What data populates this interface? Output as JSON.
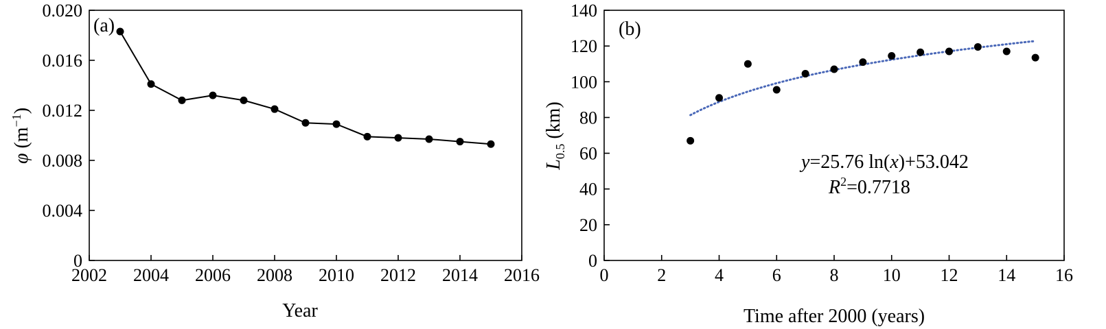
{
  "chart_data": [
    {
      "type": "line",
      "panel_label": "(a)",
      "xlabel": "Year",
      "ylabel_symbol": "φ",
      "ylabel_unit": "(m",
      "ylabel_exp": "−1",
      "ylabel_close": ")",
      "xlim": [
        2002,
        2016
      ],
      "ylim": [
        0,
        0.02
      ],
      "xticks": [
        "2002",
        "2004",
        "2006",
        "2008",
        "2010",
        "2012",
        "2014",
        "2016"
      ],
      "yticks": [
        "0",
        "0.004",
        "0.008",
        "0.012",
        "0.016",
        "0.020"
      ],
      "x": [
        2003,
        2004,
        2005,
        2006,
        2007,
        2008,
        2009,
        2010,
        2011,
        2012,
        2013,
        2014,
        2015
      ],
      "y": [
        0.0183,
        0.0141,
        0.0128,
        0.0132,
        0.0128,
        0.0121,
        0.011,
        0.0109,
        0.0099,
        0.0098,
        0.0097,
        0.0095,
        0.0093
      ],
      "grid": false
    },
    {
      "type": "scatter",
      "panel_label": "(b)",
      "xlabel": "Time after 2000 (years)",
      "ylabel_symbol": "L",
      "ylabel_sub": "0.5",
      "ylabel_unit": " (km)",
      "xlim": [
        0,
        16
      ],
      "ylim": [
        0,
        140
      ],
      "xticks": [
        "0",
        "2",
        "4",
        "6",
        "8",
        "10",
        "12",
        "14",
        "16"
      ],
      "yticks": [
        "0",
        "20",
        "40",
        "60",
        "80",
        "100",
        "120",
        "140"
      ],
      "x": [
        3,
        4,
        5,
        6,
        7,
        8,
        9,
        10,
        11,
        12,
        13,
        14,
        15
      ],
      "y": [
        67,
        91,
        110,
        95.5,
        104.5,
        107,
        111,
        114.5,
        116.5,
        117,
        119.5,
        117,
        113.5
      ],
      "trendline": {
        "type": "log",
        "a": 25.76,
        "b": 53.042,
        "x_range": [
          3,
          15
        ],
        "color": "#4a68b8",
        "style": "dotted"
      },
      "equation": {
        "y_var": "y",
        "eq_mid": "=25.76 ln(",
        "x_var": "x",
        "eq_end": ")+53.042",
        "r_var": "R",
        "r_exp": "2",
        "r_val": "=0.7718"
      },
      "grid": false
    }
  ]
}
